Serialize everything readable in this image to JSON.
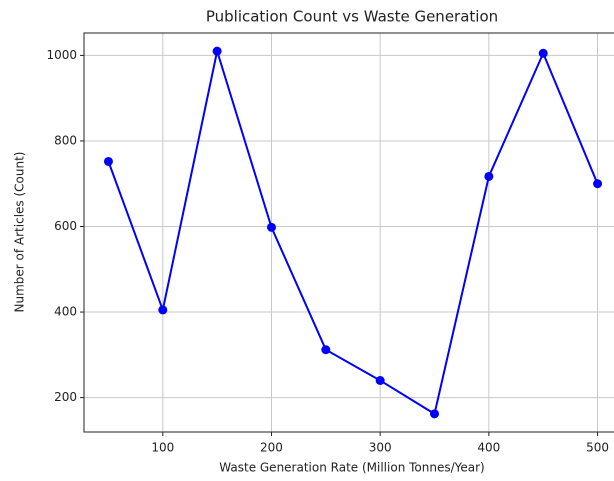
{
  "chart_data": {
    "type": "line",
    "title": "Publication Count vs Waste Generation",
    "x_label": "Waste Generation Rate (Million Tonnes/Year)",
    "y_label": "Number of Articles (Count)",
    "x": [
      50,
      100,
      150,
      200,
      250,
      300,
      350,
      400,
      450,
      500
    ],
    "series": [
      {
        "name": "Articles",
        "color": "#0000ff",
        "values": [
          752,
          405,
          1010,
          598,
          312,
          240,
          162,
          717,
          1005,
          700
        ]
      }
    ],
    "xlim": [
      27.5,
      522.5
    ],
    "xticks": [
      100,
      200,
      300,
      400,
      500
    ],
    "ylim": [
      119.6,
      1052.4
    ],
    "yticks": [
      200,
      400,
      600,
      800,
      1000
    ],
    "grid": true
  }
}
